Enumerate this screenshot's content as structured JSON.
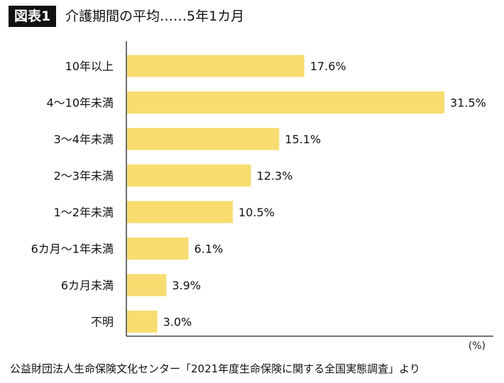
{
  "header": {
    "badge": "図表1",
    "title": "介護期間の平均……5年1カ月"
  },
  "unit_label": "(%)",
  "source": "公益財団法人生命保険文化センター「2021年度生命保険に関する全国実態調査」より",
  "colors": {
    "bar": "#F7DC6F",
    "axis": "#222222",
    "text": "#111111",
    "badge_bg": "#111111"
  },
  "chart_data": {
    "type": "bar",
    "orientation": "horizontal",
    "title": "介護期間の平均……5年1カ月",
    "xlabel": "",
    "ylabel": "",
    "xlim": [
      0,
      35
    ],
    "grid": false,
    "categories": [
      "10年以上",
      "4～10年未満",
      "3～4年未満",
      "2～3年未満",
      "1～2年未満",
      "6カ月～1年未満",
      "6カ月未満",
      "不明"
    ],
    "values": [
      17.6,
      31.5,
      15.1,
      12.3,
      10.5,
      6.1,
      3.9,
      3.0
    ],
    "value_labels": [
      "17.6%",
      "31.5%",
      "15.1%",
      "12.3%",
      "10.5%",
      "6.1%",
      "3.9%",
      "3.0%"
    ]
  }
}
